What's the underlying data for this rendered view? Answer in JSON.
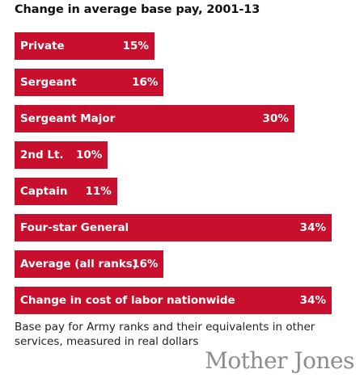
{
  "chart_data": {
    "type": "bar",
    "orientation": "horizontal",
    "title": "Change in average base pay, 2001-13",
    "categories": [
      "Private",
      "Sergeant",
      "Sergeant Major",
      "2nd Lt.",
      "Captain",
      "Four-star General",
      "Average (all ranks)",
      "Change in cost of labor nationwide"
    ],
    "values": [
      15,
      16,
      30,
      10,
      11,
      34,
      16,
      34
    ],
    "value_labels": [
      "15%",
      "16%",
      "30%",
      "10%",
      "11%",
      "34%",
      "16%",
      "34%"
    ],
    "unit": "%",
    "xlim": [
      0,
      34
    ],
    "grid": false,
    "bar_color": "#c8102e",
    "label_color": "#ffffff"
  },
  "footnote": "Base pay for Army ranks and their equivalents in other services, measured in real dollars",
  "logo_text": "Mother Jones"
}
